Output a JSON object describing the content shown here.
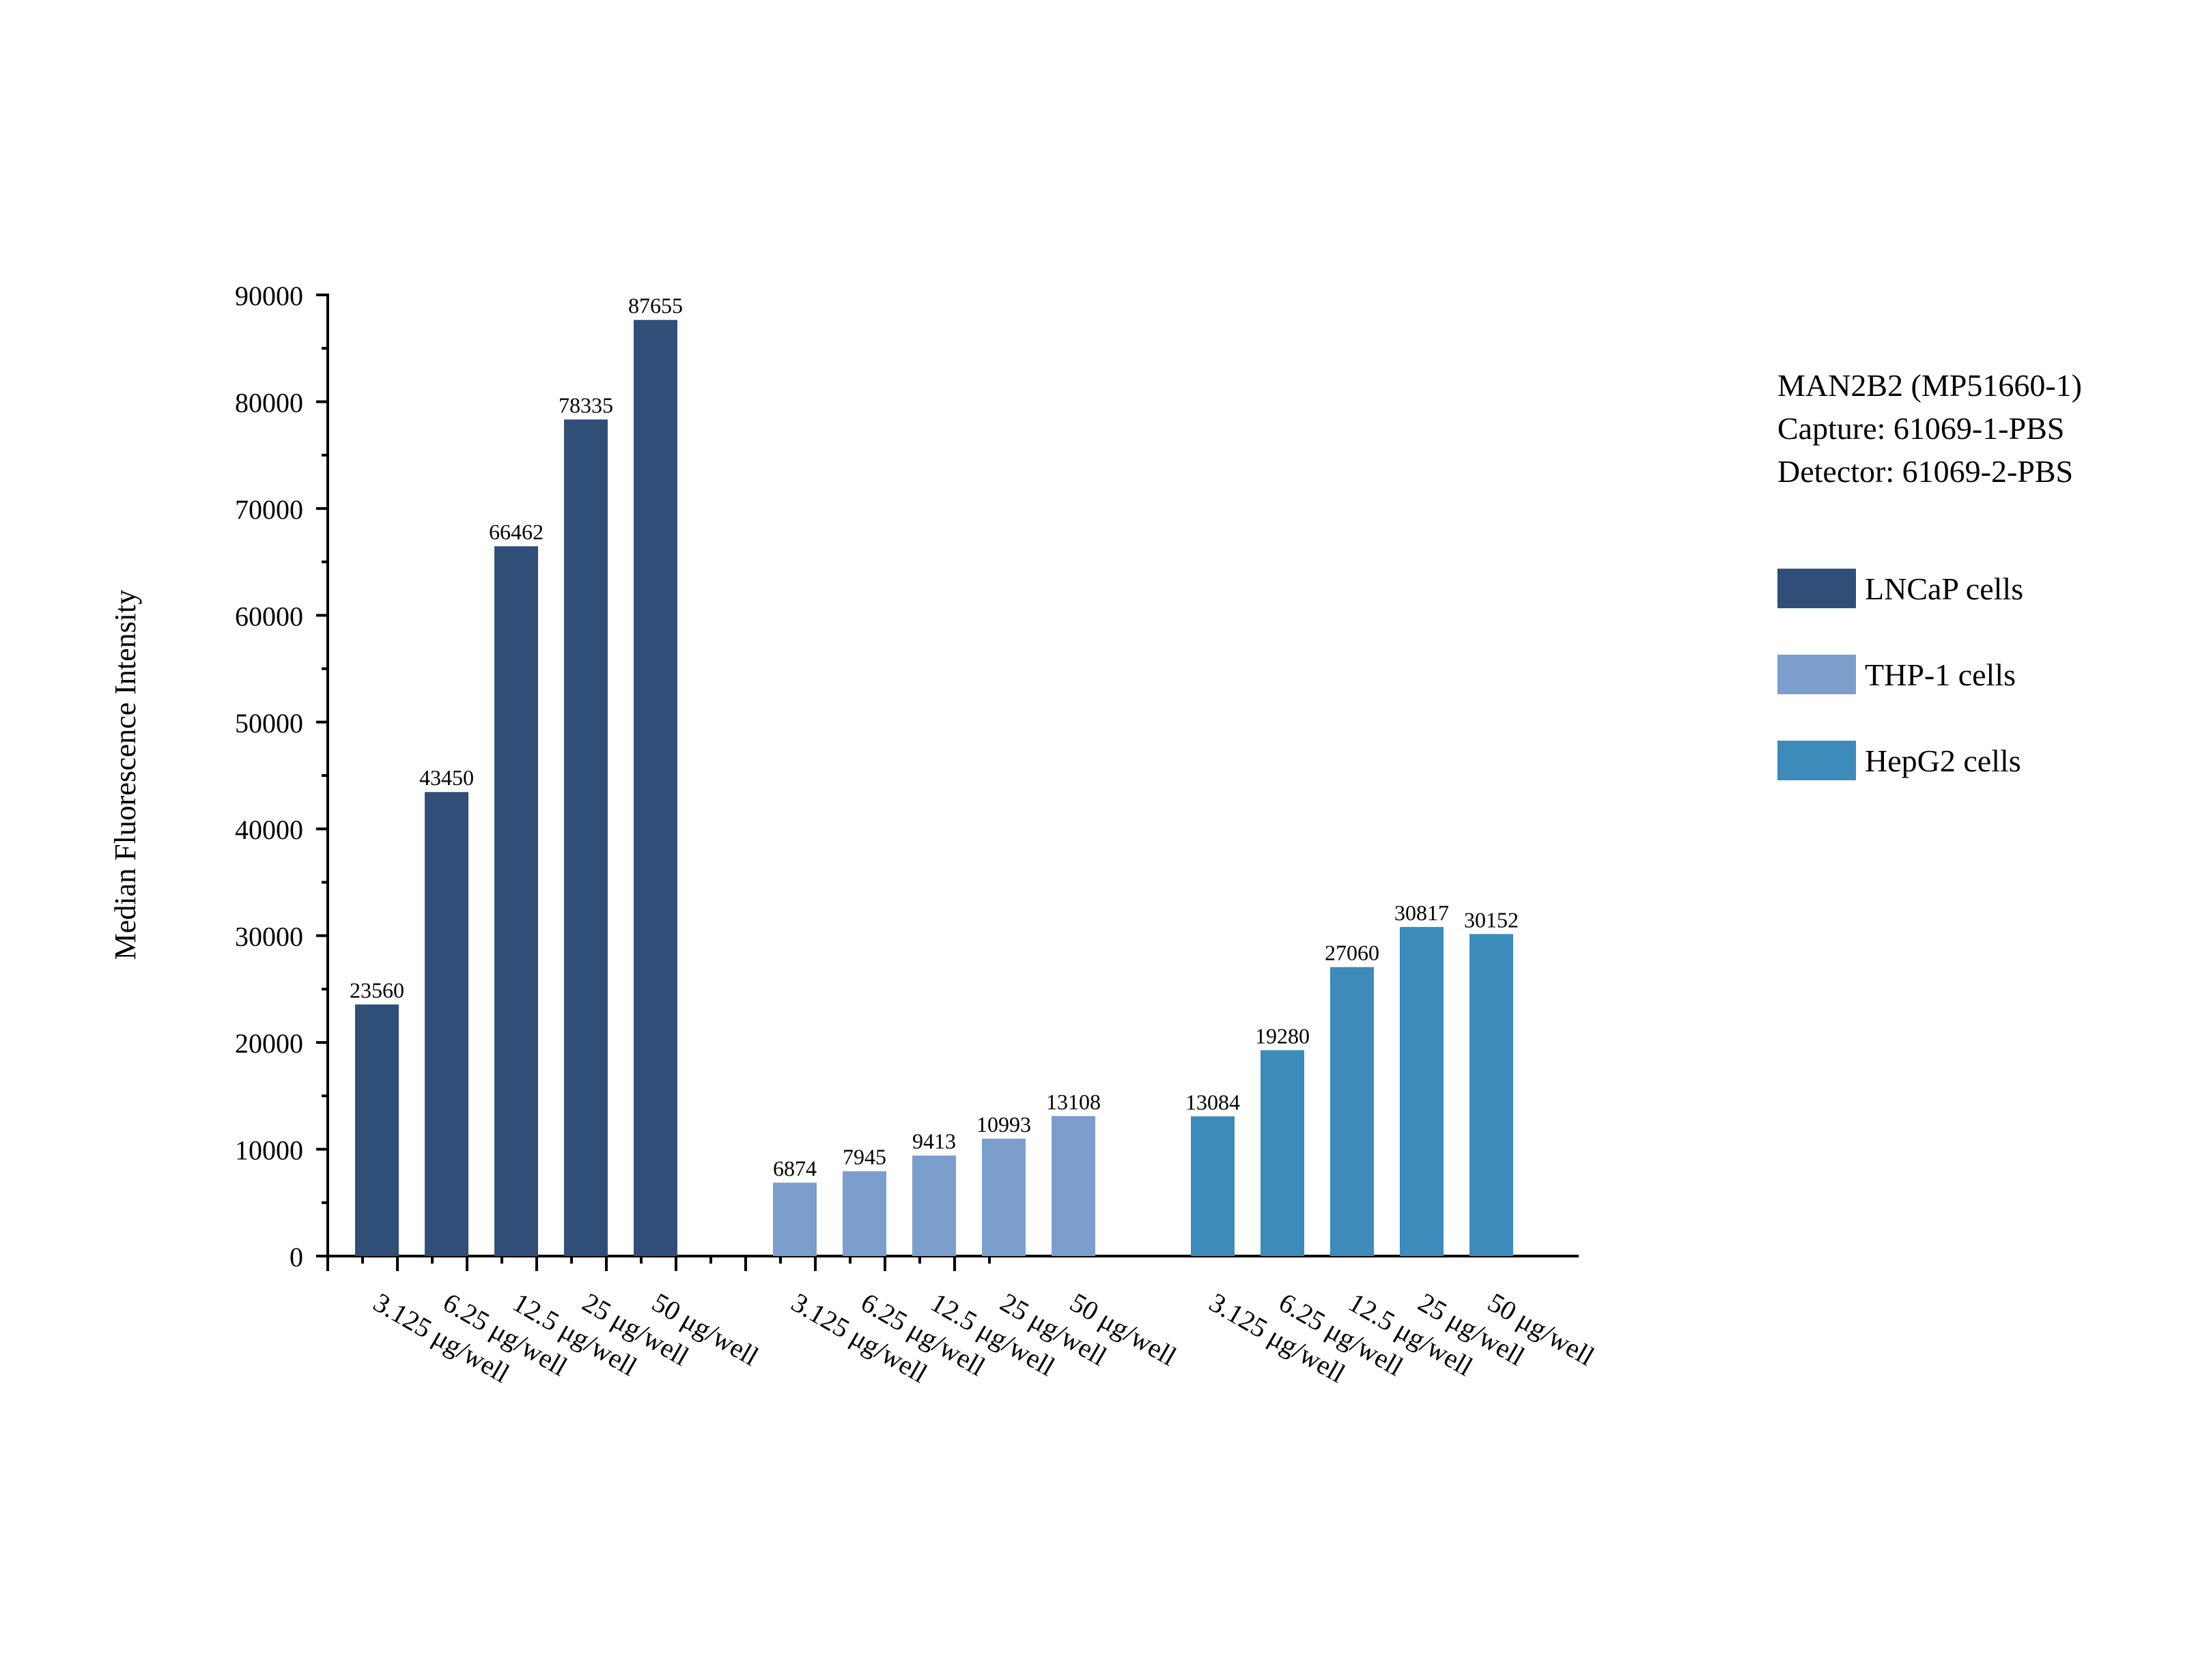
{
  "chart_data": {
    "type": "bar",
    "ylabel": "Median Fluorescence Intensity",
    "xlabel": "",
    "ylim": [
      0,
      90000
    ],
    "yticks": [
      0,
      10000,
      20000,
      30000,
      40000,
      50000,
      60000,
      70000,
      80000,
      90000
    ],
    "categories": [
      "3.125 μg/well",
      "6.25 μg/well",
      "12.5 μg/well",
      "25 μg/well",
      "50 μg/well"
    ],
    "series": [
      {
        "name": "LNCaP cells",
        "color": "#2f4f79",
        "values": [
          23560,
          43450,
          66462,
          78335,
          87655
        ]
      },
      {
        "name": "THP-1 cells",
        "color": "#7b9ecd",
        "values": [
          6874,
          7945,
          9413,
          10993,
          13108
        ]
      },
      {
        "name": "HepG2 cells",
        "color": "#3d8bba",
        "values": [
          13084,
          19280,
          27060,
          30817,
          30152
        ]
      }
    ],
    "legend_position": "right",
    "grid": false
  },
  "info": {
    "line1": "MAN2B2 (MP51660-1)",
    "line2": "Capture: 61069-1-PBS",
    "line3": "Detector: 61069-2-PBS"
  }
}
